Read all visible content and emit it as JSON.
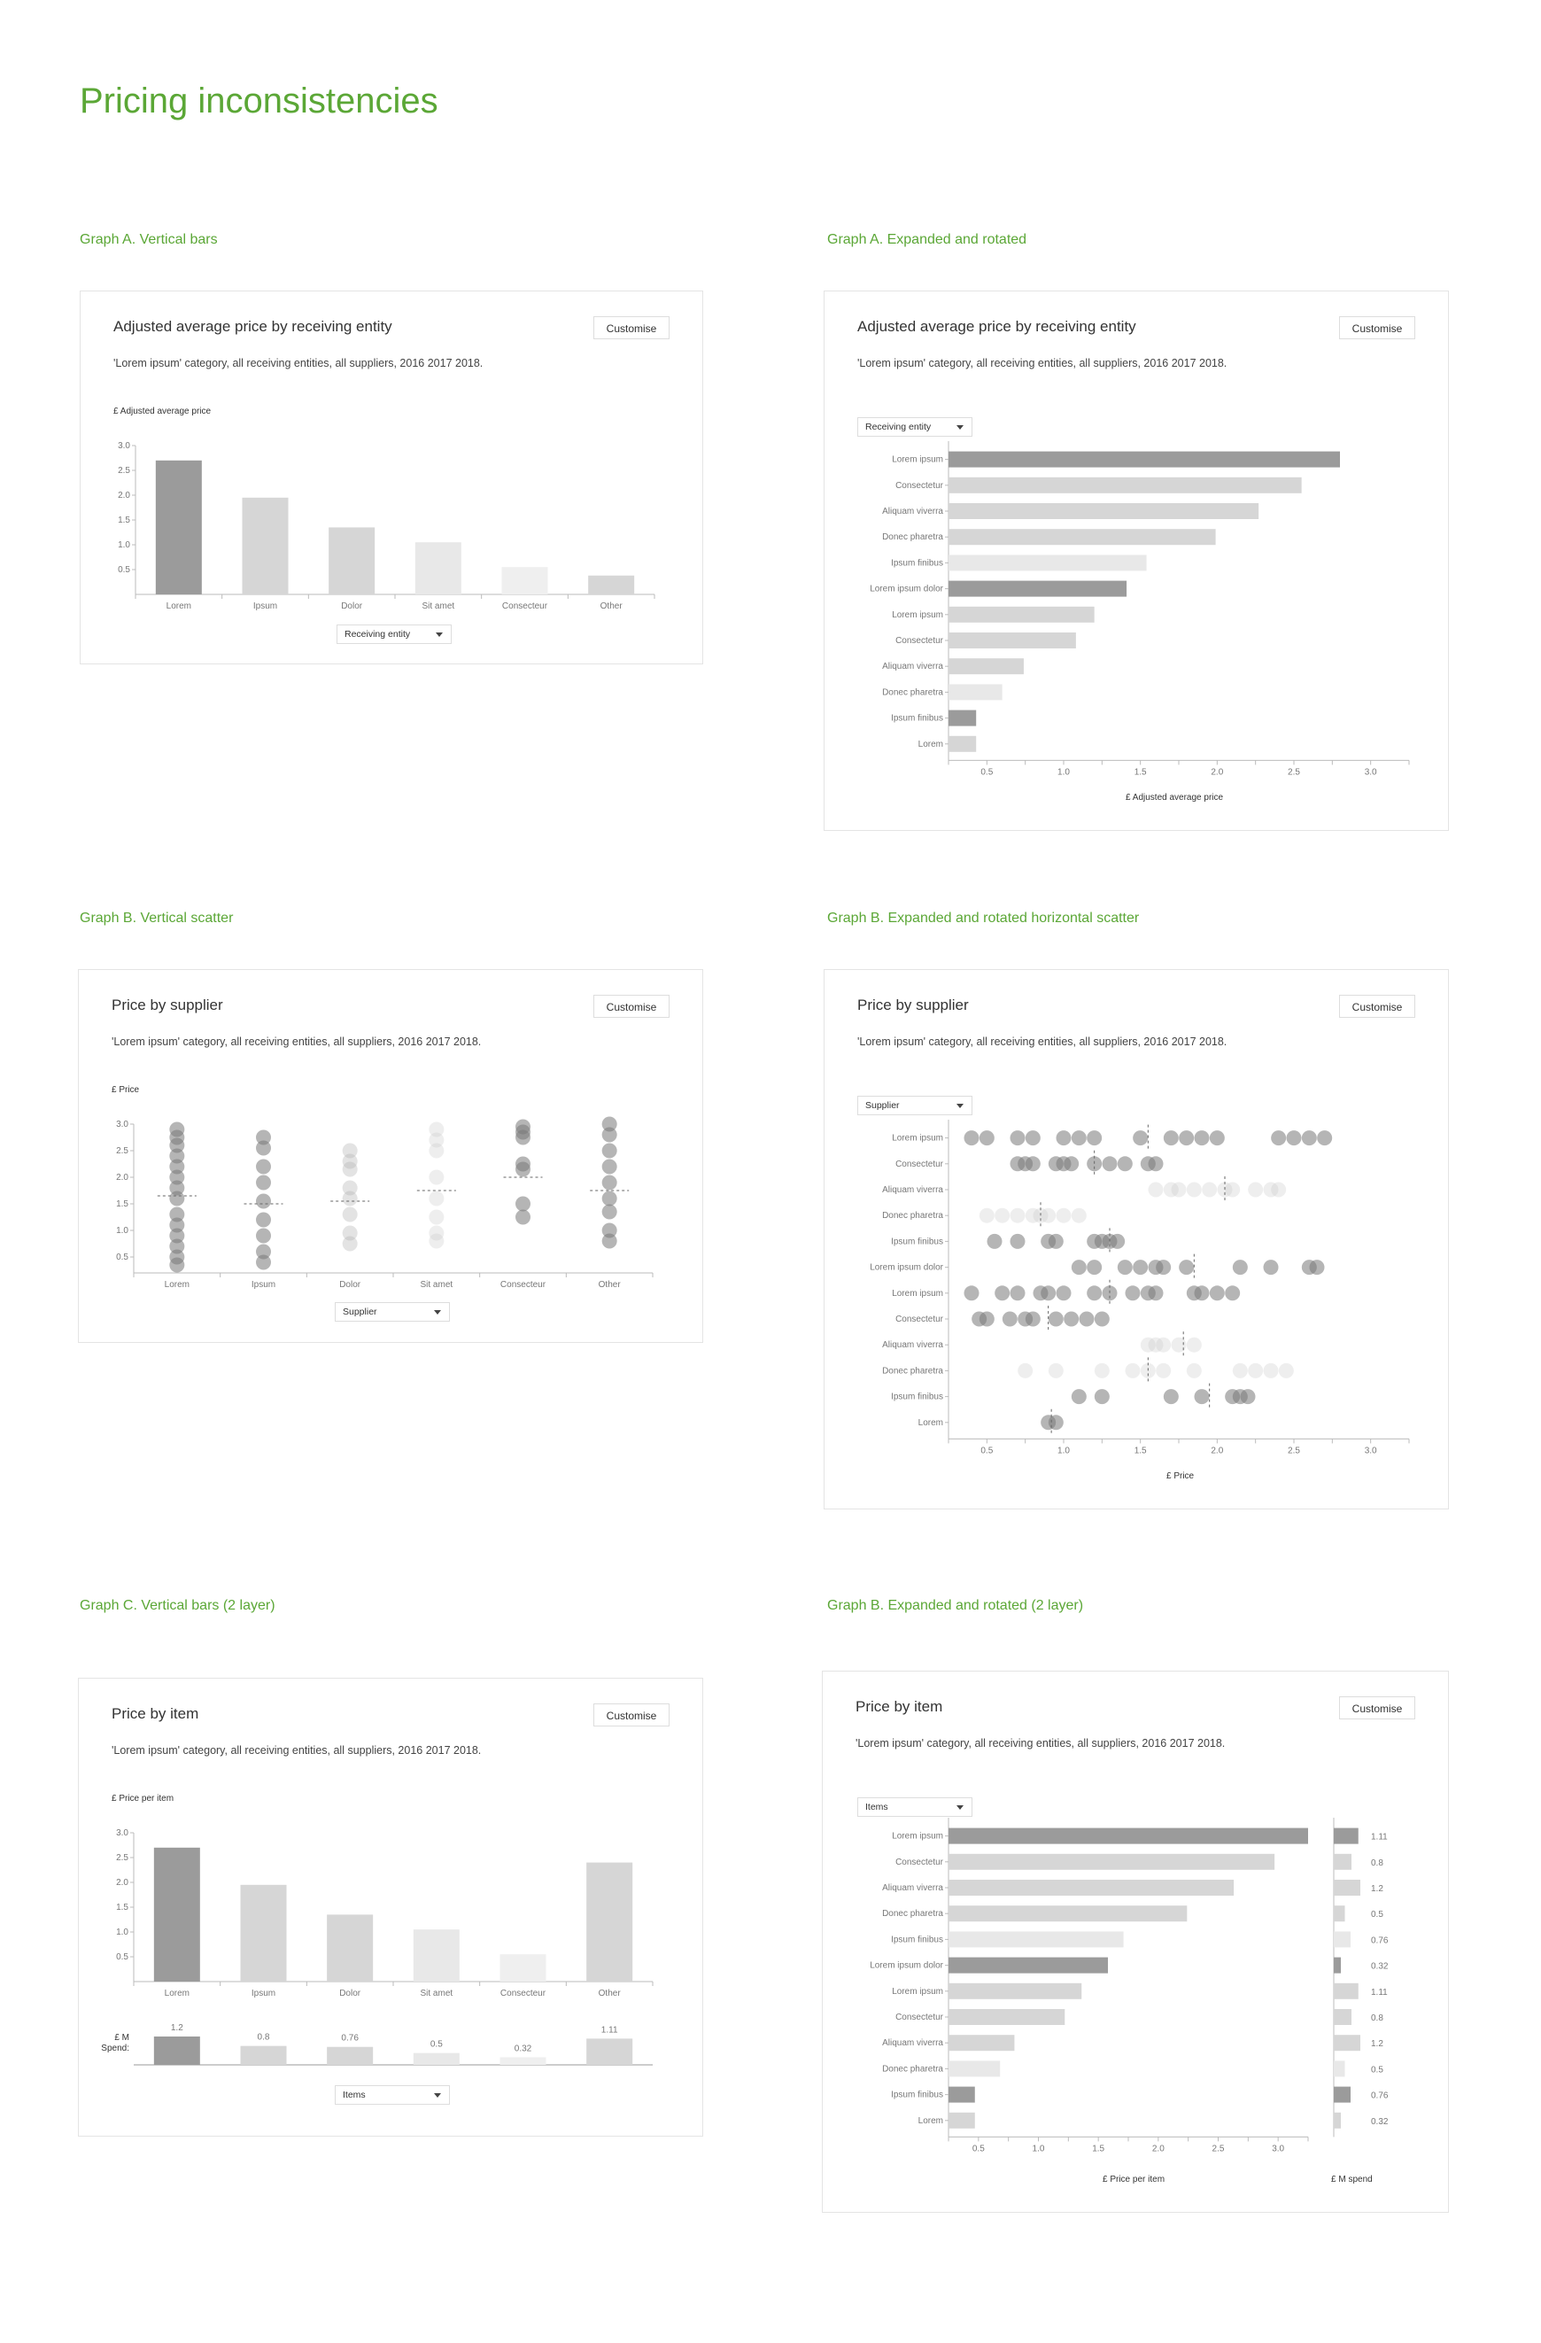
{
  "page": {
    "title": "Pricing inconsistencies"
  },
  "common": {
    "customise_label": "Customise",
    "subtitle": "'Lorem ipsum' category, all receiving entities, all suppliers, 2016 2017 2018."
  },
  "colors": {
    "accent": "#5ba736",
    "dark_bar": "#999999",
    "mid_bar": "#d6d6d6",
    "light_bar": "#e8e8e8"
  },
  "panels": {
    "a_vertical": {
      "section": "Graph A. Vertical bars",
      "title": "Adjusted average price by receiving entity",
      "ylabel": "£ Adjusted average price",
      "dropdown": "Receiving entity"
    },
    "a_rotated": {
      "section": "Graph A. Expanded and rotated",
      "title": "Adjusted average price by receiving entity",
      "xlabel": "£ Adjusted average price",
      "dropdown": "Receiving entity"
    },
    "b_vertical": {
      "section": "Graph B. Vertical scatter",
      "title": "Price by supplier",
      "ylabel": "£ Price",
      "dropdown": "Supplier"
    },
    "b_rotated": {
      "section": "Graph B. Expanded and rotated horizontal scatter",
      "title": "Price by supplier",
      "xlabel": "£ Price",
      "dropdown": "Supplier"
    },
    "c_vertical": {
      "section": "Graph C. Vertical bars (2 layer)",
      "title": "Price by item",
      "ylabel": "£ Price per item",
      "spend_label_1": "£ M",
      "spend_label_2": "Spend:",
      "dropdown": "Items"
    },
    "c_rotated": {
      "section": "Graph B. Expanded and rotated (2 layer)",
      "title": "Price by item",
      "xlabel": "£ Price per item",
      "xlabel2": "£ M spend",
      "dropdown": "Items"
    }
  },
  "chart_data": [
    {
      "id": "a_vertical",
      "type": "bar",
      "title": "Adjusted average price by receiving entity",
      "ylabel": "£ Adjusted average price",
      "ylim": [
        0,
        3.0
      ],
      "yticks": [
        "0.5",
        "1.0",
        "1.5",
        "2.0",
        "2.5",
        "3.0"
      ],
      "categories": [
        "Lorem",
        "Ipsum",
        "Dolor",
        "Sit amet",
        "Consecteur",
        "Other"
      ],
      "values": [
        2.7,
        1.95,
        1.35,
        1.05,
        0.55,
        0.38
      ],
      "shades": [
        "dark",
        "mid",
        "mid",
        "light",
        "lighter",
        "mid"
      ]
    },
    {
      "id": "a_rotated",
      "type": "bar",
      "orientation": "horizontal",
      "title": "Adjusted average price by receiving entity",
      "xlabel": "£ Adjusted average price",
      "xlim": [
        0.25,
        3.25
      ],
      "xticks": [
        "0.5",
        "1.0",
        "1.5",
        "2.0",
        "2.5",
        "3.0"
      ],
      "categories": [
        "Lorem ipsum",
        "Consectetur",
        "Aliquam viverra",
        "Donec pharetra",
        "Ipsum finibus",
        "Lorem ipsum dolor",
        "Lorem ipsum",
        "Consectetur",
        "Aliquam viverra",
        "Donec pharetra",
        "Ipsum finibus",
        "Lorem"
      ],
      "values": [
        2.8,
        2.55,
        2.27,
        1.99,
        1.54,
        1.41,
        1.2,
        1.08,
        0.74,
        0.6,
        0.43,
        0.43
      ],
      "shades": [
        "dark",
        "mid",
        "mid",
        "mid",
        "light",
        "dark",
        "mid",
        "mid",
        "mid",
        "light",
        "dark",
        "mid"
      ]
    },
    {
      "id": "b_vertical",
      "type": "scatter",
      "title": "Price by supplier",
      "ylabel": "£ Price",
      "ylim": [
        0.2,
        3.0
      ],
      "yticks": [
        "0.5",
        "1.0",
        "1.5",
        "2.0",
        "2.5",
        "3.0"
      ],
      "categories": [
        "Lorem",
        "Ipsum",
        "Dolor",
        "Sit amet",
        "Consecteur",
        "Other"
      ],
      "points": [
        [
          2.9,
          2.75,
          2.6,
          2.4,
          2.2,
          2.0,
          1.8,
          1.6,
          1.3,
          1.1,
          0.9,
          0.7,
          0.5,
          0.35
        ],
        [
          2.75,
          2.55,
          2.2,
          1.9,
          1.55,
          1.2,
          0.9,
          0.6,
          0.4
        ],
        [
          2.5,
          2.3,
          2.15,
          1.8,
          1.6,
          1.3,
          0.95,
          0.75
        ],
        [
          2.9,
          2.7,
          2.5,
          2.0,
          1.6,
          1.25,
          0.95,
          0.8
        ],
        [
          2.95,
          2.85,
          2.75,
          2.25,
          2.15,
          1.5,
          1.25
        ],
        [
          3.0,
          2.8,
          2.5,
          2.2,
          1.9,
          1.6,
          1.35,
          1.0,
          0.8
        ]
      ],
      "medians": [
        1.65,
        1.5,
        1.55,
        1.75,
        2.0,
        1.75
      ],
      "shades": [
        "dark",
        "dark",
        "light",
        "lighter",
        "dark",
        "dark"
      ]
    },
    {
      "id": "b_rotated",
      "type": "scatter",
      "orientation": "horizontal",
      "title": "Price by supplier",
      "xlabel": "£ Price",
      "xlim": [
        0.25,
        3.25
      ],
      "xticks": [
        "0.5",
        "1.0",
        "1.5",
        "2.0",
        "2.5",
        "3.0"
      ],
      "categories": [
        "Lorem ipsum",
        "Consectetur",
        "Aliquam viverra",
        "Donec pharetra",
        "Ipsum finibus",
        "Lorem ipsum dolor",
        "Lorem ipsum",
        "Consectetur",
        "Aliquam viverra",
        "Donec pharetra",
        "Ipsum finibus",
        "Lorem"
      ],
      "points": [
        [
          0.4,
          0.5,
          0.7,
          0.8,
          1.0,
          1.1,
          1.2,
          1.5,
          1.7,
          1.8,
          1.9,
          2.0,
          2.4,
          2.5,
          2.6,
          2.7
        ],
        [
          0.7,
          0.75,
          0.8,
          0.95,
          1.0,
          1.05,
          1.2,
          1.3,
          1.4,
          1.55,
          1.6
        ],
        [
          1.6,
          1.7,
          1.75,
          1.85,
          1.95,
          2.05,
          2.1,
          2.25,
          2.35,
          2.4
        ],
        [
          0.5,
          0.6,
          0.7,
          0.8,
          0.85,
          0.9,
          1.0,
          1.1
        ],
        [
          0.55,
          0.7,
          0.9,
          0.95,
          1.2,
          1.25,
          1.3,
          1.35
        ],
        [
          1.1,
          1.2,
          1.4,
          1.5,
          1.6,
          1.65,
          1.8,
          2.15,
          2.35,
          2.6,
          2.65
        ],
        [
          0.4,
          0.6,
          0.7,
          0.85,
          0.9,
          1.0,
          1.2,
          1.3,
          1.45,
          1.55,
          1.6,
          1.85,
          1.9,
          2.0,
          2.1
        ],
        [
          0.45,
          0.5,
          0.65,
          0.75,
          0.8,
          0.95,
          1.05,
          1.15,
          1.25
        ],
        [
          1.55,
          1.6,
          1.65,
          1.75,
          1.85
        ],
        [
          0.75,
          0.95,
          1.25,
          1.45,
          1.55,
          1.65,
          1.85,
          2.15,
          2.25,
          2.35,
          2.45
        ],
        [
          1.1,
          1.25,
          1.7,
          1.9,
          2.1,
          2.15,
          2.2
        ],
        [
          0.9,
          0.95
        ]
      ],
      "medians": [
        1.55,
        1.2,
        2.05,
        0.85,
        1.3,
        1.85,
        1.3,
        0.9,
        1.78,
        1.55,
        1.95,
        0.92
      ],
      "shades": [
        "dark",
        "dark",
        "lighter",
        "lighter",
        "dark",
        "dark",
        "dark",
        "dark",
        "lighter",
        "lighter",
        "dark",
        "dark"
      ]
    },
    {
      "id": "c_vertical",
      "type": "bar",
      "title": "Price by item",
      "ylabel": "£ Price per item",
      "ylim": [
        0,
        3.0
      ],
      "yticks": [
        "0.5",
        "1.0",
        "1.5",
        "2.0",
        "2.5",
        "3.0"
      ],
      "categories": [
        "Lorem",
        "Ipsum",
        "Dolor",
        "Sit amet",
        "Consecteur",
        "Other"
      ],
      "values": [
        2.7,
        1.95,
        1.35,
        1.05,
        0.55,
        2.4
      ],
      "shades": [
        "dark",
        "mid",
        "mid",
        "light",
        "lighter",
        "mid"
      ],
      "spend_labels": [
        "1.2",
        "0.8",
        "0.76",
        "0.5",
        "0.32",
        "1.11"
      ],
      "spend_values": [
        1.2,
        0.8,
        0.76,
        0.5,
        0.32,
        1.11
      ]
    },
    {
      "id": "c_rotated",
      "type": "bar",
      "orientation": "horizontal",
      "title": "Price by item",
      "xlabel": "£ Price per item",
      "xlim": [
        0.25,
        3.25
      ],
      "xticks": [
        "0.5",
        "1.0",
        "1.5",
        "2.0",
        "2.5",
        "3.0"
      ],
      "categories": [
        "Lorem ipsum",
        "Consectetur",
        "Aliquam viverra",
        "Donec pharetra",
        "Ipsum finibus",
        "Lorem ipsum dolor",
        "Lorem ipsum",
        "Consectetur",
        "Aliquam viverra",
        "Donec pharetra",
        "Ipsum finibus",
        "Lorem"
      ],
      "values": [
        3.25,
        2.97,
        2.63,
        2.24,
        1.71,
        1.58,
        1.36,
        1.22,
        0.8,
        0.68,
        0.47,
        0.47
      ],
      "shades": [
        "dark",
        "mid",
        "mid",
        "mid",
        "light",
        "dark",
        "mid",
        "mid",
        "mid",
        "light",
        "dark",
        "mid"
      ],
      "spend_xlabel": "£ M spend",
      "spend_labels": [
        "1.11",
        "0.8",
        "1.2",
        "0.5",
        "0.76",
        "0.32",
        "1.11",
        "0.8",
        "1.2",
        "0.5",
        "0.76",
        "0.32"
      ],
      "spend_values": [
        1.11,
        0.8,
        1.2,
        0.5,
        0.76,
        0.32,
        1.11,
        0.8,
        1.2,
        0.5,
        0.76,
        0.32
      ]
    }
  ]
}
